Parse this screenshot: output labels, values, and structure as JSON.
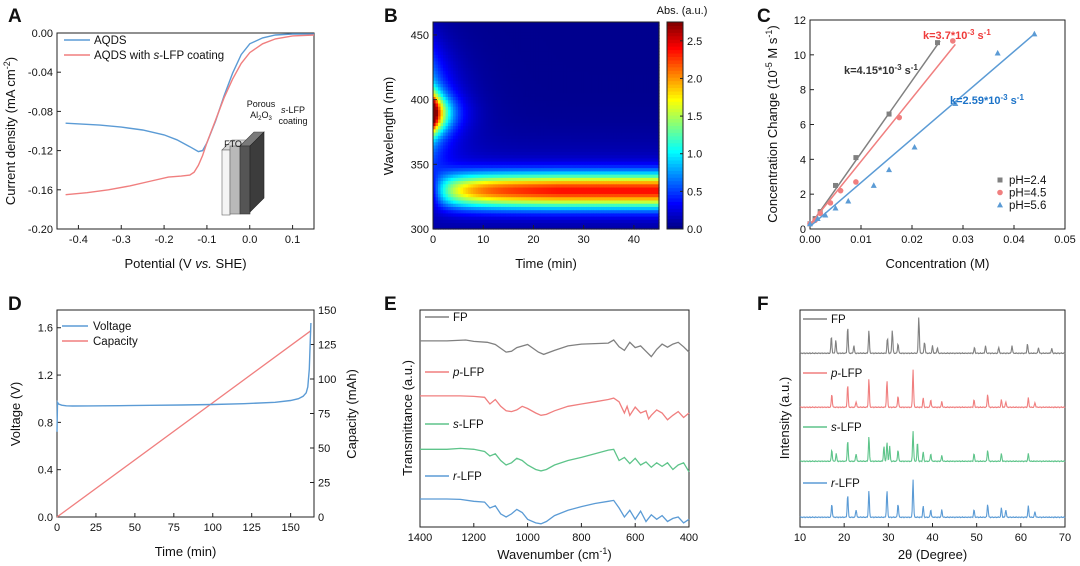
{
  "colors": {
    "blue": "#5b9bd5",
    "red": "#f07f7f",
    "gray": "#808080",
    "green": "#5ec48a",
    "axis": "#222222",
    "rate_blue": "#1c73c8",
    "rate_red": "#ef3b3b",
    "rate_gray": "#333333"
  },
  "chart_data": [
    {
      "panel": "A",
      "type": "line",
      "xlabel": "Potential (V vs. SHE)",
      "ylabel": "Current density (mA cm-2)",
      "xlim": [
        -0.45,
        0.15
      ],
      "ylim": [
        -0.2,
        0.0
      ],
      "xticks": [
        "-0.4",
        "-0.3",
        "-0.2",
        "-0.1",
        "0.0",
        "0.1"
      ],
      "yticks": [
        "0.00",
        "-0.04",
        "-0.08",
        "-0.12",
        "-0.16",
        "-0.20"
      ],
      "series": [
        {
          "name": "AQDS",
          "color": "blue",
          "x": [
            -0.43,
            -0.35,
            -0.3,
            -0.25,
            -0.2,
            -0.17,
            -0.14,
            -0.12,
            -0.11,
            -0.1,
            -0.08,
            -0.06,
            -0.04,
            -0.02,
            0.0,
            0.03,
            0.06,
            0.1,
            0.15
          ],
          "y": [
            -0.092,
            -0.094,
            -0.096,
            -0.099,
            -0.104,
            -0.109,
            -0.116,
            -0.121,
            -0.12,
            -0.112,
            -0.09,
            -0.064,
            -0.041,
            -0.022,
            -0.011,
            -0.005,
            -0.002,
            -0.001,
            -0.001
          ]
        },
        {
          "name": "AQDS with s-LFP coating",
          "color": "red",
          "x": [
            -0.43,
            -0.38,
            -0.33,
            -0.28,
            -0.23,
            -0.19,
            -0.16,
            -0.14,
            -0.13,
            -0.12,
            -0.11,
            -0.1,
            -0.08,
            -0.06,
            -0.04,
            -0.02,
            0.0,
            0.03,
            0.06,
            0.1,
            0.15
          ],
          "y": [
            -0.165,
            -0.163,
            -0.16,
            -0.156,
            -0.151,
            -0.147,
            -0.146,
            -0.145,
            -0.142,
            -0.135,
            -0.125,
            -0.112,
            -0.089,
            -0.066,
            -0.047,
            -0.031,
            -0.02,
            -0.011,
            -0.006,
            -0.003,
            -0.002
          ]
        }
      ],
      "inset_labels": {
        "fto": "FTO",
        "porous": "Porous",
        "al2o3": "Al",
        "al2o3_sub": "2",
        "al2o3_o": "O",
        "al2o3_sub2": "3",
        "slfp": "s-LFP",
        "coating": "coating"
      }
    },
    {
      "panel": "B",
      "type": "heatmap",
      "xlabel": "Time (min)",
      "ylabel": "Wavelength (nm)",
      "xlim": [
        0,
        45
      ],
      "ylim": [
        300,
        460
      ],
      "xticks": [
        "0",
        "10",
        "20",
        "30",
        "40"
      ],
      "yticks": [
        "300",
        "350",
        "400",
        "450"
      ],
      "colorbar_title": "Abs. (a.u.)",
      "colorbar_ticks": [
        "0.0",
        "0.5",
        "1.0",
        "1.5",
        "2.0",
        "2.5"
      ],
      "zlim": [
        0,
        2.75
      ],
      "features": [
        {
          "desc": "band",
          "wavelength_center": 330,
          "wavelength_width": 12,
          "time_start": 5,
          "time_end": 45,
          "peak": 2.2
        },
        {
          "desc": "initial peak",
          "wavelength_center": 390,
          "time_center": 0.5,
          "peak": 2.75
        }
      ]
    },
    {
      "panel": "C",
      "type": "scatter",
      "xlabel": "Concentration (M)",
      "ylabel": "Concentration Change (10-5 M s-1)",
      "xlim": [
        0,
        0.05
      ],
      "ylim": [
        0,
        12
      ],
      "xticks": [
        "0.00",
        "0.01",
        "0.02",
        "0.03",
        "0.04",
        "0.05"
      ],
      "yticks": [
        "0",
        "2",
        "4",
        "6",
        "8",
        "10",
        "12"
      ],
      "series": [
        {
          "name": "pH=2.4",
          "color": "gray",
          "marker": "square",
          "x": [
            0.0,
            0.001,
            0.002,
            0.005,
            0.009,
            0.0155,
            0.025
          ],
          "y": [
            0.3,
            0.6,
            1.0,
            2.5,
            4.1,
            6.6,
            10.7
          ],
          "fit": [
            [
              0.0,
              0.2
            ],
            [
              0.0255,
              10.8
            ]
          ]
        },
        {
          "name": "pH=4.5",
          "color": "red",
          "marker": "circle",
          "x": [
            0.0,
            0.001,
            0.002,
            0.004,
            0.006,
            0.009,
            0.0175,
            0.028
          ],
          "y": [
            0.3,
            0.5,
            0.9,
            1.5,
            2.2,
            2.7,
            6.4,
            10.8
          ],
          "fit": [
            [
              0.0,
              0.25
            ],
            [
              0.0285,
              10.6
            ]
          ]
        },
        {
          "name": "pH=5.6",
          "color": "blue",
          "marker": "triangle",
          "x": [
            0.0,
            0.0015,
            0.003,
            0.005,
            0.0075,
            0.0125,
            0.0155,
            0.0205,
            0.0285,
            0.0368,
            0.044
          ],
          "y": [
            0.3,
            0.6,
            0.8,
            1.2,
            1.6,
            2.5,
            3.4,
            4.7,
            7.2,
            10.1,
            11.2
          ],
          "fit": [
            [
              0.0,
              0.15
            ],
            [
              0.044,
              11.2
            ]
          ]
        }
      ],
      "annotations": [
        {
          "text": "k=4.15*10",
          "exp": "-3",
          "unit": " s",
          "uexp": "-1",
          "color": "rate_gray"
        },
        {
          "text": "k=3.7*10",
          "exp": "-3",
          "unit": " s",
          "uexp": "-1",
          "color": "rate_red"
        },
        {
          "text": "k=2.59*10",
          "exp": "-3",
          "unit": " s",
          "uexp": "-1",
          "color": "rate_blue"
        }
      ]
    },
    {
      "panel": "D",
      "type": "line",
      "xlabel": "Time (min)",
      "ylabel": "Voltage (V)",
      "ylabel_right": "Capacity (mAh)",
      "xlim": [
        0,
        165
      ],
      "ylim": [
        0,
        1.75
      ],
      "ylim_right": [
        0,
        150
      ],
      "xticks": [
        "0",
        "25",
        "50",
        "75",
        "100",
        "125",
        "150"
      ],
      "yticks": [
        "0.0",
        "0.4",
        "0.8",
        "1.2",
        "1.6"
      ],
      "yticks_right": [
        "0",
        "25",
        "50",
        "75",
        "100",
        "125",
        "150"
      ],
      "series": [
        {
          "name": "Voltage",
          "color": "blue",
          "x": [
            0,
            0.3,
            1,
            3,
            6,
            10,
            20,
            40,
            60,
            80,
            100,
            120,
            140,
            150,
            155,
            158,
            160,
            161,
            162,
            162.5,
            163
          ],
          "y": [
            0.72,
            0.97,
            0.955,
            0.945,
            0.94,
            0.938,
            0.939,
            0.941,
            0.944,
            0.947,
            0.951,
            0.958,
            0.97,
            0.985,
            1.0,
            1.02,
            1.05,
            1.1,
            1.25,
            1.45,
            1.64
          ]
        },
        {
          "name": "Capacity",
          "color": "red",
          "axis": "right",
          "x": [
            0,
            163
          ],
          "y": [
            0,
            135
          ]
        }
      ]
    },
    {
      "panel": "E",
      "type": "line",
      "xlabel": "Wavenumber (cm-1)",
      "ylabel": "Transmittance (a.u.)",
      "xlim": [
        1400,
        400
      ],
      "xticks": [
        "1400",
        "1200",
        "1000",
        "800",
        "600",
        "400"
      ],
      "series": [
        {
          "name": "FP",
          "color": "gray",
          "x": [
            1400,
            1300,
            1230,
            1200,
            1150,
            1120,
            1080,
            1060,
            1040,
            1000,
            960,
            940,
            900,
            850,
            800,
            750,
            700,
            680,
            660,
            640,
            620,
            600,
            580,
            560,
            540,
            520,
            500,
            480,
            460,
            440,
            420,
            400
          ],
          "y": [
            0.93,
            0.93,
            0.95,
            0.92,
            0.9,
            0.85,
            0.68,
            0.7,
            0.78,
            0.85,
            0.68,
            0.63,
            0.72,
            0.82,
            0.86,
            0.87,
            0.88,
            0.95,
            0.8,
            0.72,
            0.9,
            0.78,
            0.82,
            0.7,
            0.58,
            0.74,
            0.86,
            0.79,
            0.86,
            0.9,
            0.8,
            0.68
          ]
        },
        {
          "name": "p-LFP",
          "color": "red",
          "x": [
            1400,
            1250,
            1200,
            1160,
            1140,
            1120,
            1100,
            1080,
            1060,
            1040,
            1020,
            1000,
            970,
            950,
            930,
            900,
            850,
            800,
            750,
            700,
            680,
            660,
            640,
            630,
            620,
            600,
            580,
            560,
            550,
            540,
            520,
            500,
            480,
            460,
            440,
            420,
            400
          ],
          "y": [
            0.93,
            0.93,
            0.92,
            0.9,
            0.75,
            0.85,
            0.7,
            0.6,
            0.58,
            0.62,
            0.7,
            0.65,
            0.55,
            0.5,
            0.52,
            0.6,
            0.7,
            0.75,
            0.8,
            0.85,
            0.88,
            0.8,
            0.55,
            0.7,
            0.5,
            0.68,
            0.55,
            0.6,
            0.42,
            0.5,
            0.62,
            0.55,
            0.4,
            0.5,
            0.58,
            0.45,
            0.55
          ]
        },
        {
          "name": "s-LFP",
          "color": "green",
          "x": [
            1400,
            1300,
            1250,
            1200,
            1160,
            1140,
            1120,
            1100,
            1080,
            1060,
            1040,
            1020,
            1000,
            970,
            950,
            930,
            900,
            850,
            800,
            750,
            700,
            680,
            660,
            640,
            620,
            600,
            580,
            560,
            540,
            520,
            500,
            480,
            460,
            440,
            420,
            400
          ],
          "y": [
            0.9,
            0.9,
            0.92,
            0.9,
            0.85,
            0.75,
            0.8,
            0.65,
            0.55,
            0.6,
            0.7,
            0.65,
            0.55,
            0.45,
            0.42,
            0.45,
            0.55,
            0.65,
            0.72,
            0.8,
            0.88,
            0.9,
            0.65,
            0.72,
            0.58,
            0.7,
            0.55,
            0.62,
            0.5,
            0.6,
            0.52,
            0.6,
            0.45,
            0.55,
            0.6,
            0.4
          ]
        },
        {
          "name": "r-LFP",
          "color": "blue",
          "x": [
            1400,
            1300,
            1250,
            1200,
            1160,
            1140,
            1120,
            1100,
            1080,
            1060,
            1040,
            1020,
            1000,
            970,
            950,
            930,
            900,
            850,
            800,
            750,
            700,
            680,
            660,
            640,
            620,
            600,
            580,
            560,
            540,
            520,
            500,
            480,
            460,
            440,
            420,
            400
          ],
          "y": [
            0.95,
            0.95,
            0.94,
            0.9,
            0.88,
            0.75,
            0.8,
            0.62,
            0.55,
            0.62,
            0.72,
            0.65,
            0.5,
            0.42,
            0.4,
            0.45,
            0.58,
            0.7,
            0.78,
            0.85,
            0.9,
            0.92,
            0.75,
            0.55,
            0.7,
            0.5,
            0.68,
            0.45,
            0.6,
            0.5,
            0.58,
            0.45,
            0.52,
            0.55,
            0.42,
            0.5
          ]
        }
      ]
    },
    {
      "panel": "F",
      "type": "line",
      "xlabel": "2θ (Degree)",
      "ylabel": "Intensity (a.u.)",
      "xlim": [
        10,
        70
      ],
      "xticks": [
        "10",
        "20",
        "30",
        "40",
        "50",
        "60",
        "70"
      ],
      "series": [
        {
          "name": "FP",
          "color": "gray",
          "peaks": [
            [
              17.1,
              0.45
            ],
            [
              18.1,
              0.35
            ],
            [
              20.8,
              0.7
            ],
            [
              22.2,
              0.2
            ],
            [
              25.6,
              0.6
            ],
            [
              29.8,
              0.4
            ],
            [
              30.9,
              0.6
            ],
            [
              32.2,
              0.25
            ],
            [
              36.9,
              0.95
            ],
            [
              38.2,
              0.3
            ],
            [
              40.0,
              0.2
            ],
            [
              41.1,
              0.15
            ],
            [
              49.5,
              0.15
            ],
            [
              52.0,
              0.2
            ],
            [
              55.0,
              0.15
            ],
            [
              58.0,
              0.2
            ],
            [
              61.5,
              0.25
            ],
            [
              64.0,
              0.15
            ],
            [
              67.0,
              0.12
            ]
          ]
        },
        {
          "name": "p-LFP",
          "color": "red",
          "peaks": [
            [
              17.2,
              0.35
            ],
            [
              20.8,
              0.6
            ],
            [
              22.7,
              0.15
            ],
            [
              25.6,
              0.75
            ],
            [
              29.7,
              0.7
            ],
            [
              32.2,
              0.3
            ],
            [
              35.6,
              1.0
            ],
            [
              37.9,
              0.25
            ],
            [
              39.6,
              0.2
            ],
            [
              42.1,
              0.15
            ],
            [
              49.4,
              0.2
            ],
            [
              52.5,
              0.35
            ],
            [
              55.6,
              0.2
            ],
            [
              56.6,
              0.15
            ],
            [
              61.7,
              0.25
            ],
            [
              63.2,
              0.12
            ]
          ]
        },
        {
          "name": "s-LFP",
          "color": "green",
          "peaks": [
            [
              17.2,
              0.3
            ],
            [
              18.2,
              0.2
            ],
            [
              20.8,
              0.55
            ],
            [
              22.7,
              0.2
            ],
            [
              25.6,
              0.65
            ],
            [
              29.0,
              0.4
            ],
            [
              29.7,
              0.5
            ],
            [
              30.3,
              0.4
            ],
            [
              32.2,
              0.3
            ],
            [
              35.6,
              0.8
            ],
            [
              36.6,
              0.5
            ],
            [
              37.9,
              0.25
            ],
            [
              39.6,
              0.2
            ],
            [
              42.1,
              0.15
            ],
            [
              49.4,
              0.2
            ],
            [
              52.5,
              0.3
            ],
            [
              55.6,
              0.2
            ],
            [
              61.7,
              0.2
            ]
          ]
        },
        {
          "name": "r-LFP",
          "color": "blue",
          "peaks": [
            [
              17.2,
              0.35
            ],
            [
              20.8,
              0.6
            ],
            [
              22.7,
              0.2
            ],
            [
              25.6,
              0.7
            ],
            [
              29.7,
              0.7
            ],
            [
              32.2,
              0.35
            ],
            [
              35.6,
              1.0
            ],
            [
              37.9,
              0.3
            ],
            [
              39.6,
              0.2
            ],
            [
              42.1,
              0.2
            ],
            [
              49.4,
              0.2
            ],
            [
              52.5,
              0.35
            ],
            [
              55.6,
              0.25
            ],
            [
              56.6,
              0.2
            ],
            [
              61.7,
              0.3
            ],
            [
              63.2,
              0.15
            ]
          ]
        }
      ]
    }
  ]
}
